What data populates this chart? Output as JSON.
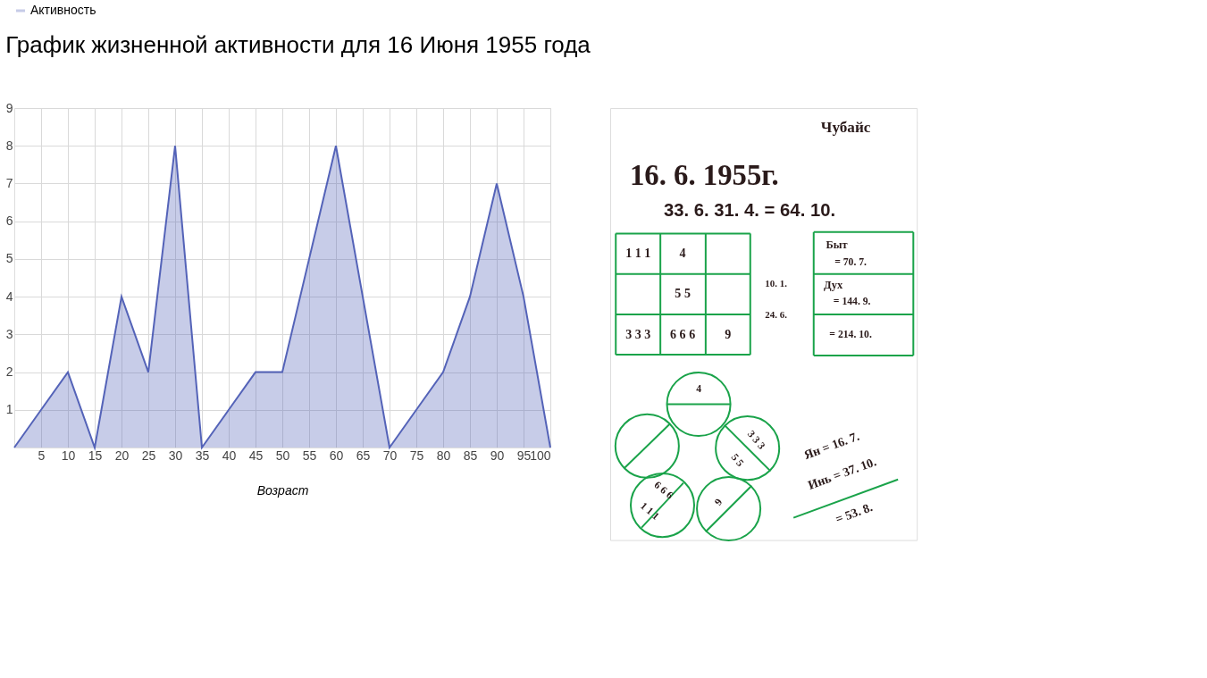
{
  "chart_data": [
    {
      "type": "area",
      "title": "График жизненной активности для 16 Июня 1955 года",
      "xlabel": "Возраст",
      "x": [
        0,
        5,
        10,
        15,
        20,
        25,
        30,
        35,
        40,
        45,
        50,
        55,
        60,
        65,
        70,
        75,
        80,
        85,
        90,
        95,
        100
      ],
      "series": [
        {
          "name": "Активность",
          "color": "#5463b8",
          "values": [
            0,
            1,
            2,
            0,
            4,
            2,
            8,
            0,
            1,
            2,
            2,
            5,
            8,
            4,
            0,
            1,
            2,
            4,
            7,
            4,
            0
          ]
        }
      ],
      "xlim": [
        0,
        100
      ],
      "xticks": [
        5,
        10,
        15,
        20,
        25,
        30,
        35,
        40,
        45,
        50,
        55,
        60,
        65,
        70,
        75,
        80,
        85,
        90,
        95,
        100
      ],
      "ylim": [
        0,
        9
      ],
      "yticks": [
        1,
        2,
        3,
        4,
        5,
        6,
        7,
        8,
        9
      ],
      "grid": true,
      "legend": "top left"
    },
    {
      "type": "other",
      "annotations": [
        "Чубайс",
        "16. 6. 1955г.",
        "33. 6.    31. 4.   =   64. 10.",
        "1 1 1",
        "4",
        "5 5",
        "3 3 3",
        "6 6 6",
        "9",
        "10. 1.",
        "24. 6.",
        "Быт",
        "= 70. 7.",
        "Дух",
        "= 144. 9.",
        "= 214. 10.",
        "4",
        "3 3 3",
        "5 5",
        "9",
        "6 6 6",
        "1 1 1",
        "Ян = 16. 7.",
        "Инь = 37. 10.",
        "= 53. 8."
      ]
    }
  ]
}
